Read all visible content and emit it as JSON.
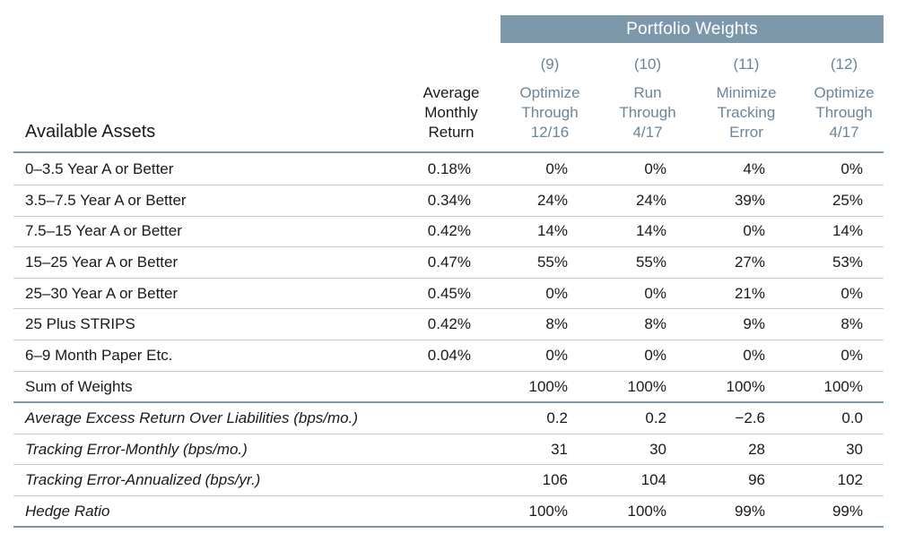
{
  "header": {
    "banner": "Portfolio Weights",
    "assets_label": "Available Assets",
    "avg_return_lines": [
      "Average",
      "Monthly",
      "Return"
    ],
    "columns": [
      {
        "num": "(9)",
        "lines": [
          "Optimize",
          "Through",
          "12/16"
        ]
      },
      {
        "num": "(10)",
        "lines": [
          "Run",
          "Through",
          "4/17"
        ]
      },
      {
        "num": "(11)",
        "lines": [
          "Minimize",
          "Tracking",
          "Error"
        ]
      },
      {
        "num": "(12)",
        "lines": [
          "Optimize",
          "Through",
          "4/17"
        ]
      }
    ]
  },
  "assets": [
    {
      "label": "0–3.5 Year A or Better",
      "avg": "0.18%",
      "w": [
        "0%",
        "0%",
        "4%",
        "0%"
      ]
    },
    {
      "label": "3.5–7.5 Year A or Better",
      "avg": "0.34%",
      "w": [
        "24%",
        "24%",
        "39%",
        "25%"
      ]
    },
    {
      "label": "7.5–15 Year A or Better",
      "avg": "0.42%",
      "w": [
        "14%",
        "14%",
        "0%",
        "14%"
      ]
    },
    {
      "label": "15–25 Year A or Better",
      "avg": "0.47%",
      "w": [
        "55%",
        "55%",
        "27%",
        "53%"
      ]
    },
    {
      "label": "25–30 Year A or Better",
      "avg": "0.45%",
      "w": [
        "0%",
        "0%",
        "21%",
        "0%"
      ]
    },
    {
      "label": "25 Plus STRIPS",
      "avg": "0.42%",
      "w": [
        "8%",
        "8%",
        "9%",
        "8%"
      ]
    },
    {
      "label": "6–9 Month Paper Etc.",
      "avg": "0.04%",
      "w": [
        "0%",
        "0%",
        "0%",
        "0%"
      ]
    },
    {
      "label": "Sum of Weights",
      "avg": "",
      "w": [
        "100%",
        "100%",
        "100%",
        "100%"
      ]
    }
  ],
  "metrics": [
    {
      "label": "Average Excess Return Over Liabilities (bps/mo.)",
      "w": [
        "0.2",
        "0.2",
        "−2.6",
        "0.0"
      ]
    },
    {
      "label": "Tracking Error-Monthly (bps/mo.)",
      "w": [
        "31",
        "30",
        "28",
        "30"
      ]
    },
    {
      "label": "Tracking Error-Annualized (bps/yr.)",
      "w": [
        "106",
        "104",
        "96",
        "102"
      ]
    },
    {
      "label": "Hedge Ratio",
      "w": [
        "100%",
        "100%",
        "99%",
        "99%"
      ]
    }
  ],
  "colors": {
    "banner": "#7c98aa",
    "header_text": "#6a8599"
  }
}
